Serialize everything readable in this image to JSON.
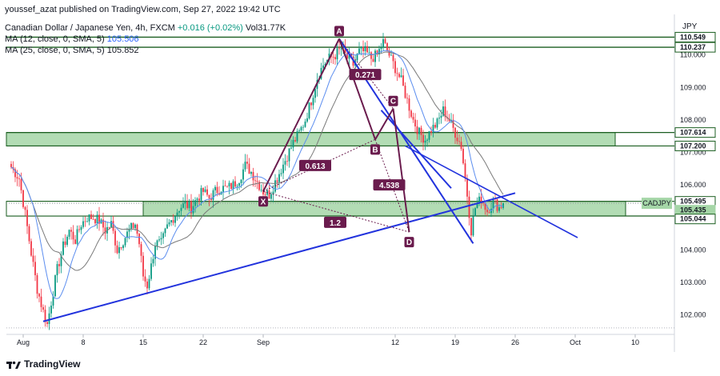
{
  "header": {
    "published": "youssef_azat published on TradingView.com, Sep 27, 2022 19:42 UTC",
    "symbol_desc": "Canadian Dollar / Japanese Yen, 4h, FXCM",
    "change": "+0.016 (+0.02%)",
    "volume": "Vol31.77K",
    "ma12_label": "MA (12, close, 0, SMA, 5)",
    "ma12_value": "105.506",
    "ma25_label": "MA (25, close, 0, SMA, 5)",
    "ma25_value": "105.852"
  },
  "footer": {
    "brand": "TradingView"
  },
  "colors": {
    "up": "#089981",
    "down": "#f23645",
    "ma12": "#5b8def",
    "ma25": "#7a7a7a",
    "zone": "#a5d6a7",
    "zone_border": "#1b5e20",
    "trend": "#2233dd",
    "pattern": "#6a1b4d"
  },
  "chart_data": {
    "type": "candlestick",
    "currency": "JPY",
    "ylim": [
      101.4,
      111.2
    ],
    "yticks": [
      "102.000",
      "103.000",
      "104.000",
      "105.000",
      "106.000",
      "107.000",
      "108.000",
      "109.000",
      "110.000"
    ],
    "xticks": [
      {
        "label": "Aug",
        "bar": 6
      },
      {
        "label": "8",
        "bar": 36
      },
      {
        "label": "15",
        "bar": 66
      },
      {
        "label": "22",
        "bar": 96
      },
      {
        "label": "Sep",
        "bar": 126
      },
      {
        "label": "12",
        "bar": 192
      },
      {
        "label": "19",
        "bar": 222
      },
      {
        "label": "26",
        "bar": 252
      },
      {
        "label": "Oct",
        "bar": 282
      },
      {
        "label": "10",
        "bar": 312
      }
    ],
    "anchors": [
      [
        0,
        106.55
      ],
      [
        4,
        106.2
      ],
      [
        7,
        105.1
      ],
      [
        10,
        103.9
      ],
      [
        13,
        102.8
      ],
      [
        16,
        102.1
      ],
      [
        18,
        101.7
      ],
      [
        20,
        102.4
      ],
      [
        23,
        103.4
      ],
      [
        26,
        104.1
      ],
      [
        29,
        104.6
      ],
      [
        32,
        104.3
      ],
      [
        35,
        104.8
      ],
      [
        38,
        105.0
      ],
      [
        41,
        105.0
      ],
      [
        44,
        104.9
      ],
      [
        47,
        104.6
      ],
      [
        50,
        104.8
      ],
      [
        53,
        104.0
      ],
      [
        56,
        104.3
      ],
      [
        59,
        104.6
      ],
      [
        62,
        104.8
      ],
      [
        64,
        104.2
      ],
      [
        66,
        103.2
      ],
      [
        68,
        102.9
      ],
      [
        70,
        103.5
      ],
      [
        72,
        104.2
      ],
      [
        75,
        104.2
      ],
      [
        78,
        104.7
      ],
      [
        81,
        105.0
      ],
      [
        84,
        105.3
      ],
      [
        87,
        105.4
      ],
      [
        90,
        105.3
      ],
      [
        93,
        105.6
      ],
      [
        96,
        105.8
      ],
      [
        99,
        105.6
      ],
      [
        102,
        105.8
      ],
      [
        105,
        105.9
      ],
      [
        108,
        105.9
      ],
      [
        111,
        106.0
      ],
      [
        114,
        106.2
      ],
      [
        117,
        106.6
      ],
      [
        120,
        106.4
      ],
      [
        123,
        106.1
      ],
      [
        126,
        105.8
      ],
      [
        129,
        105.7
      ],
      [
        132,
        106.1
      ],
      [
        135,
        106.5
      ],
      [
        138,
        106.9
      ],
      [
        141,
        107.3
      ],
      [
        144,
        107.6
      ],
      [
        147,
        108.0
      ],
      [
        150,
        108.6
      ],
      [
        153,
        109.3
      ],
      [
        156,
        109.7
      ],
      [
        159,
        109.9
      ],
      [
        162,
        110.0
      ],
      [
        165,
        110.2
      ],
      [
        168,
        109.9
      ],
      [
        171,
        109.7
      ],
      [
        174,
        110.1
      ],
      [
        177,
        110.1
      ],
      [
        180,
        109.9
      ],
      [
        183,
        110.0
      ],
      [
        186,
        110.4
      ],
      [
        189,
        110.0
      ],
      [
        192,
        109.6
      ],
      [
        195,
        109.2
      ],
      [
        198,
        108.6
      ],
      [
        201,
        108.0
      ],
      [
        204,
        107.6
      ],
      [
        207,
        107.4
      ],
      [
        210,
        107.7
      ],
      [
        213,
        107.9
      ],
      [
        216,
        108.3
      ],
      [
        219,
        108.0
      ],
      [
        222,
        107.6
      ],
      [
        225,
        107.2
      ],
      [
        228,
        105.7
      ],
      [
        230,
        104.6
      ],
      [
        232,
        105.3
      ],
      [
        235,
        105.6
      ],
      [
        238,
        105.2
      ],
      [
        241,
        105.5
      ],
      [
        244,
        105.3
      ],
      [
        246,
        105.44
      ]
    ],
    "annotations": {
      "zones": [
        {
          "from": 107.2,
          "to": 107.614
        },
        {
          "from": 105.044,
          "to": 105.495
        }
      ],
      "resistance_lines": [
        110.549,
        110.237
      ],
      "price_labels": [
        {
          "value": "110.549",
          "price": 110.549,
          "fill": "#ffffff",
          "text": "#131722",
          "border": "#1b5e20"
        },
        {
          "value": "110.237",
          "price": 110.237,
          "fill": "#ffffff",
          "text": "#131722",
          "border": "#1b5e20"
        },
        {
          "value": "107.614",
          "price": 107.614,
          "fill": "#ffffff",
          "text": "#131722",
          "border": "#1b5e20"
        },
        {
          "value": "107.200",
          "price": 107.2,
          "fill": "#ffffff",
          "text": "#131722",
          "border": "#1b5e20"
        },
        {
          "value": "105.495",
          "price": 105.495,
          "fill": "#ffffff",
          "text": "#131722",
          "border": "#1b5e20"
        },
        {
          "value": "105.435",
          "price": 105.435,
          "fill": "#a5d6a7",
          "text": "#131722",
          "border": "#a5d6a7"
        },
        {
          "value": "105.044",
          "price": 105.044,
          "fill": "#ffffff",
          "text": "#131722",
          "border": "#1b5e20"
        }
      ],
      "symbol_tag": "CADJPY",
      "harmonic_points": [
        {
          "label": "X",
          "bar": 126,
          "price": 105.8
        },
        {
          "label": "A",
          "bar": 164,
          "price": 110.5
        },
        {
          "label": "B",
          "bar": 182,
          "price": 107.4
        },
        {
          "label": "C",
          "bar": 191,
          "price": 108.35
        },
        {
          "label": "D",
          "bar": 199,
          "price": 104.55
        }
      ],
      "ratios": [
        {
          "label": "0.271",
          "bar": 177,
          "price": 109.4
        },
        {
          "label": "0.613",
          "bar": 152,
          "price": 106.6
        },
        {
          "label": "4.538",
          "bar": 189,
          "price": 106.0
        },
        {
          "label": "1.2",
          "bar": 162,
          "price": 104.85
        }
      ],
      "trendlines": [
        {
          "x1": 16,
          "y1": 101.8,
          "x2": 252,
          "y2": 105.75
        },
        {
          "x1": 164,
          "y1": 110.5,
          "x2": 231,
          "y2": 104.2
        },
        {
          "x1": 185,
          "y1": 108.3,
          "x2": 220,
          "y2": 105.9
        }
      ]
    }
  }
}
